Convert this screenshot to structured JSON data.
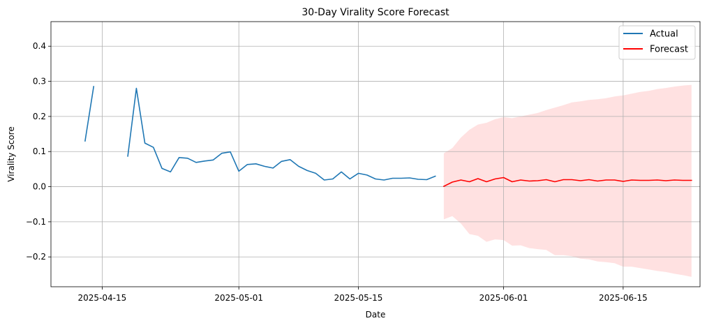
{
  "chart_data": {
    "type": "line",
    "title": "30-Day Virality Score Forecast",
    "xlabel": "Date",
    "ylabel": "Virality Score",
    "xlim": [
      "2025-04-09",
      "2025-06-24"
    ],
    "ylim": [
      -0.285,
      0.47
    ],
    "x_ticks": [
      "2025-04-15",
      "2025-05-01",
      "2025-05-15",
      "2025-06-01",
      "2025-06-15"
    ],
    "y_ticks": [
      -0.2,
      -0.1,
      0.0,
      0.1,
      0.2,
      0.3,
      0.4
    ],
    "y_tick_labels": [
      "−0.2",
      "−0.1",
      "0.0",
      "0.1",
      "0.2",
      "0.3",
      "0.4"
    ],
    "grid": true,
    "legend_position": "top-right",
    "series": [
      {
        "name": "Actual",
        "color": "#1f77b4",
        "x": [
          "2025-04-13",
          "2025-04-14",
          "2025-04-15",
          "2025-04-16",
          "2025-04-17",
          "2025-04-18",
          "2025-04-19",
          "2025-04-20",
          "2025-04-21",
          "2025-04-22",
          "2025-04-23",
          "2025-04-24",
          "2025-04-25",
          "2025-04-26",
          "2025-04-27",
          "2025-04-28",
          "2025-04-29",
          "2025-04-30",
          "2025-05-01",
          "2025-05-02",
          "2025-05-03",
          "2025-05-04",
          "2025-05-05",
          "2025-05-06",
          "2025-05-07",
          "2025-05-08",
          "2025-05-09",
          "2025-05-10",
          "2025-05-11",
          "2025-05-12",
          "2025-05-13",
          "2025-05-14",
          "2025-05-15",
          "2025-05-16",
          "2025-05-17",
          "2025-05-18",
          "2025-05-19",
          "2025-05-20",
          "2025-05-21",
          "2025-05-22",
          "2025-05-23",
          "2025-05-24"
        ],
        "values": [
          0.13,
          0.285,
          null,
          null,
          null,
          0.087,
          0.28,
          0.124,
          0.112,
          0.052,
          0.042,
          0.083,
          0.081,
          0.069,
          0.073,
          0.076,
          0.095,
          0.099,
          0.044,
          0.063,
          0.065,
          0.058,
          0.053,
          0.072,
          0.077,
          0.058,
          0.046,
          0.038,
          0.019,
          0.022,
          0.042,
          0.022,
          0.038,
          0.033,
          0.022,
          0.019,
          0.024,
          0.024,
          0.025,
          0.021,
          0.02,
          0.03
        ]
      },
      {
        "name": "Forecast",
        "color": "#ff0000",
        "band_color": "#ffb3b3",
        "x": [
          "2025-05-25",
          "2025-05-26",
          "2025-05-27",
          "2025-05-28",
          "2025-05-29",
          "2025-05-30",
          "2025-05-31",
          "2025-06-01",
          "2025-06-02",
          "2025-06-03",
          "2025-06-04",
          "2025-06-05",
          "2025-06-06",
          "2025-06-07",
          "2025-06-08",
          "2025-06-09",
          "2025-06-10",
          "2025-06-11",
          "2025-06-12",
          "2025-06-13",
          "2025-06-14",
          "2025-06-15",
          "2025-06-16",
          "2025-06-17",
          "2025-06-18",
          "2025-06-19",
          "2025-06-20",
          "2025-06-21",
          "2025-06-22",
          "2025-06-23"
        ],
        "values": [
          0.001,
          0.013,
          0.019,
          0.014,
          0.023,
          0.014,
          0.022,
          0.026,
          0.014,
          0.019,
          0.016,
          0.017,
          0.02,
          0.014,
          0.02,
          0.02,
          0.017,
          0.02,
          0.016,
          0.019,
          0.019,
          0.015,
          0.019,
          0.018,
          0.018,
          0.019,
          0.017,
          0.019,
          0.018,
          0.018
        ],
        "upper": [
          0.095,
          0.11,
          0.14,
          0.162,
          0.177,
          0.182,
          0.192,
          0.198,
          0.195,
          0.2,
          0.205,
          0.21,
          0.218,
          0.225,
          0.232,
          0.24,
          0.243,
          0.247,
          0.249,
          0.252,
          0.257,
          0.26,
          0.265,
          0.27,
          0.273,
          0.278,
          0.281,
          0.285,
          0.288,
          0.29
        ],
        "lower": [
          -0.093,
          -0.084,
          -0.105,
          -0.135,
          -0.14,
          -0.157,
          -0.15,
          -0.152,
          -0.168,
          -0.167,
          -0.175,
          -0.178,
          -0.18,
          -0.195,
          -0.195,
          -0.198,
          -0.205,
          -0.207,
          -0.213,
          -0.215,
          -0.218,
          -0.228,
          -0.228,
          -0.232,
          -0.236,
          -0.24,
          -0.243,
          -0.248,
          -0.252,
          -0.257
        ]
      }
    ]
  }
}
